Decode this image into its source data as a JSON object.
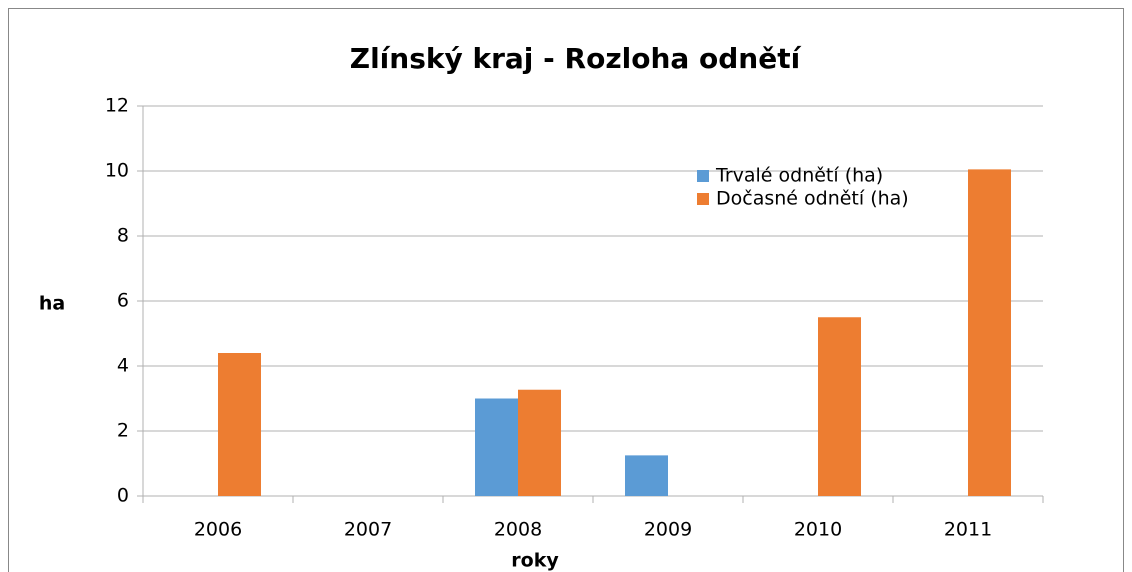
{
  "chart_data": {
    "type": "bar",
    "title": "Zlínský kraj - Rozloha odnětí",
    "x_label": "roky",
    "y_label": "ha",
    "categories": [
      "2006",
      "2007",
      "2008",
      "2009",
      "2010",
      "2011"
    ],
    "series": [
      {
        "name": "Trvalé odnětí (ha)",
        "color": "#5b9bd5",
        "values": [
          0,
          0,
          3,
          1.25,
          0,
          0
        ]
      },
      {
        "name": "Dočasné odnětí (ha)",
        "color": "#ed7d31",
        "values": [
          4.4,
          0,
          3.27,
          0,
          5.5,
          10.05
        ]
      }
    ],
    "ylim": [
      0,
      12
    ],
    "yticks": [
      0,
      2,
      4,
      6,
      8,
      10,
      12
    ],
    "grid": true,
    "legend": "upper right"
  }
}
